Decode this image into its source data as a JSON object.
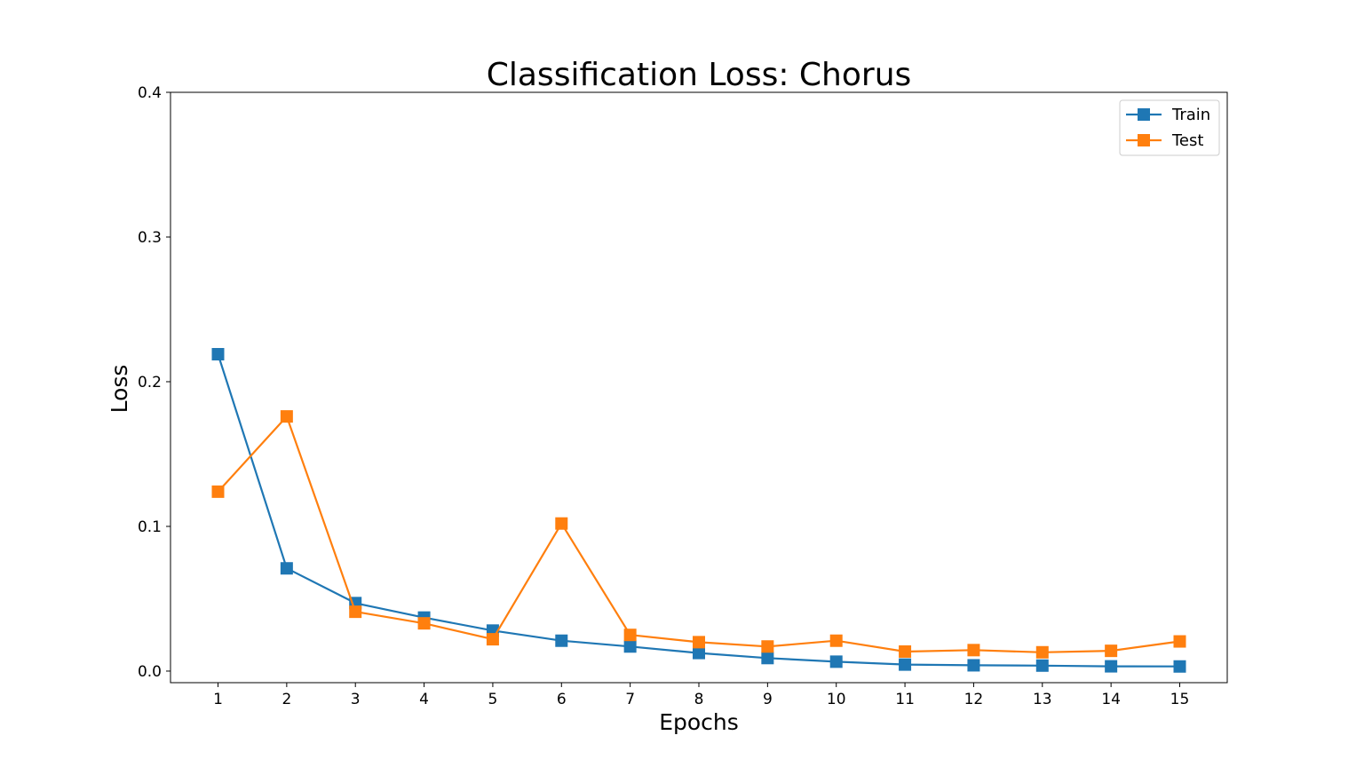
{
  "chart_data": {
    "type": "line",
    "title": "Classification Loss: Chorus",
    "xlabel": "Epochs",
    "ylabel": "Loss",
    "x": [
      1,
      2,
      3,
      4,
      5,
      6,
      7,
      8,
      9,
      10,
      11,
      12,
      13,
      14,
      15
    ],
    "xticks": [
      "1",
      "2",
      "3",
      "4",
      "5",
      "6",
      "7",
      "8",
      "9",
      "10",
      "11",
      "12",
      "13",
      "14",
      "15"
    ],
    "yticks": [
      "0.0",
      "0.1",
      "0.2",
      "0.3",
      "0.4"
    ],
    "ylim": [
      -0.008,
      0.4
    ],
    "grid": false,
    "legend_position": "top-right",
    "series": [
      {
        "name": "Train",
        "color": "#1f77b4",
        "marker": "square",
        "values": [
          0.219,
          0.071,
          0.047,
          0.037,
          0.028,
          0.021,
          0.017,
          0.0125,
          0.009,
          0.0065,
          0.0045,
          0.004,
          0.0038,
          0.0033,
          0.0032
        ]
      },
      {
        "name": "Test",
        "color": "#ff7f0e",
        "marker": "square",
        "values": [
          0.124,
          0.176,
          0.041,
          0.033,
          0.022,
          0.102,
          0.025,
          0.02,
          0.017,
          0.021,
          0.0135,
          0.0145,
          0.013,
          0.014,
          0.0205
        ]
      }
    ]
  }
}
